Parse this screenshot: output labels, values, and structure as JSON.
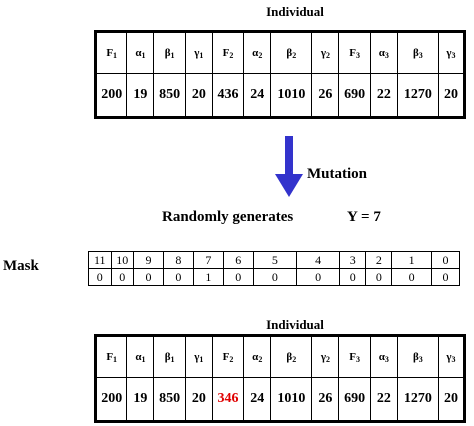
{
  "top": {
    "title": "Individual",
    "headers": [
      {
        "sym": "F",
        "sub": "1"
      },
      {
        "sym": "α",
        "sub": "1"
      },
      {
        "sym": "β",
        "sub": "1"
      },
      {
        "sym": "γ",
        "sub": "1"
      },
      {
        "sym": "F",
        "sub": "2"
      },
      {
        "sym": "α",
        "sub": "2"
      },
      {
        "sym": "β",
        "sub": "2"
      },
      {
        "sym": "γ",
        "sub": "2"
      },
      {
        "sym": "F",
        "sub": "3"
      },
      {
        "sym": "α",
        "sub": "3"
      },
      {
        "sym": "β",
        "sub": "3"
      },
      {
        "sym": "γ",
        "sub": "3"
      }
    ],
    "values": [
      "200",
      "19",
      "850",
      "20",
      "436",
      "24",
      "1010",
      "26",
      "690",
      "22",
      "1270",
      "20"
    ]
  },
  "arrow": {
    "label": "Mutation",
    "color": "#3333cc"
  },
  "random": {
    "text": "Randomly generates",
    "y_text": "Y = 7"
  },
  "mask": {
    "label": "Mask",
    "indices": [
      "11",
      "10",
      "9",
      "8",
      "7",
      "6",
      "5",
      "4",
      "3",
      "2",
      "1",
      "0"
    ],
    "bits": [
      "0",
      "0",
      "0",
      "0",
      "1",
      "0",
      "0",
      "0",
      "0",
      "0",
      "0",
      "0"
    ]
  },
  "bottom": {
    "title": "Individual",
    "headers": [
      {
        "sym": "F",
        "sub": "1"
      },
      {
        "sym": "α",
        "sub": "1"
      },
      {
        "sym": "β",
        "sub": "1"
      },
      {
        "sym": "γ",
        "sub": "1"
      },
      {
        "sym": "F",
        "sub": "2"
      },
      {
        "sym": "α",
        "sub": "2"
      },
      {
        "sym": "β",
        "sub": "2"
      },
      {
        "sym": "γ",
        "sub": "2"
      },
      {
        "sym": "F",
        "sub": "3"
      },
      {
        "sym": "α",
        "sub": "3"
      },
      {
        "sym": "β",
        "sub": "3"
      },
      {
        "sym": "γ",
        "sub": "3"
      }
    ],
    "values": [
      "200",
      "19",
      "850",
      "20",
      "346",
      "24",
      "1010",
      "26",
      "690",
      "22",
      "1270",
      "20"
    ],
    "mutated_index": 4,
    "mutated_color": "#e00000"
  }
}
